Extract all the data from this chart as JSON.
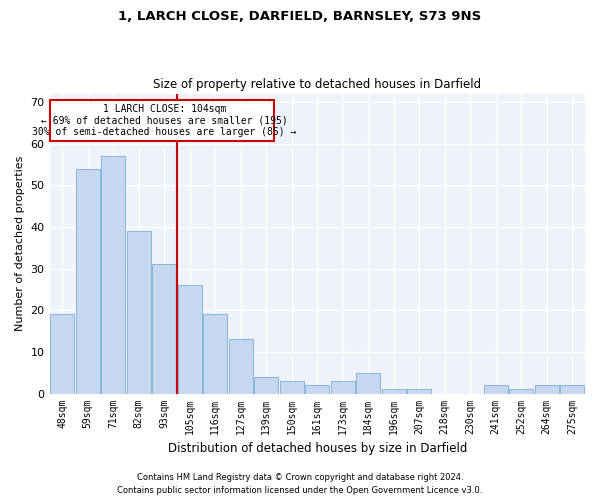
{
  "title1": "1, LARCH CLOSE, DARFIELD, BARNSLEY, S73 9NS",
  "title2": "Size of property relative to detached houses in Darfield",
  "xlabel": "Distribution of detached houses by size in Darfield",
  "ylabel": "Number of detached properties",
  "categories": [
    "48sqm",
    "59sqm",
    "71sqm",
    "82sqm",
    "93sqm",
    "105sqm",
    "116sqm",
    "127sqm",
    "139sqm",
    "150sqm",
    "161sqm",
    "173sqm",
    "184sqm",
    "196sqm",
    "207sqm",
    "218sqm",
    "230sqm",
    "241sqm",
    "252sqm",
    "264sqm",
    "275sqm"
  ],
  "values": [
    19,
    54,
    57,
    39,
    31,
    26,
    19,
    13,
    4,
    3,
    2,
    3,
    5,
    1,
    1,
    0,
    0,
    2,
    1,
    2,
    2
  ],
  "highlight_index": 5,
  "bar_color": "#c5d8f0",
  "bar_edge_color": "#7bafd4",
  "highlight_line_color": "#cc0000",
  "annotation_box_edge_color": "#cc0000",
  "annotation_line1": "1 LARCH CLOSE: 104sqm",
  "annotation_line2": "← 69% of detached houses are smaller (195)",
  "annotation_line3": "30% of semi-detached houses are larger (85) →",
  "ylim": [
    0,
    72
  ],
  "yticks": [
    0,
    10,
    20,
    30,
    40,
    50,
    60,
    70
  ],
  "footer1": "Contains HM Land Registry data © Crown copyright and database right 2024.",
  "footer2": "Contains public sector information licensed under the Open Government Licence v3.0.",
  "bg_color": "#eef2fa",
  "grid_color": "#ffffff",
  "fig_bg_color": "#ffffff"
}
